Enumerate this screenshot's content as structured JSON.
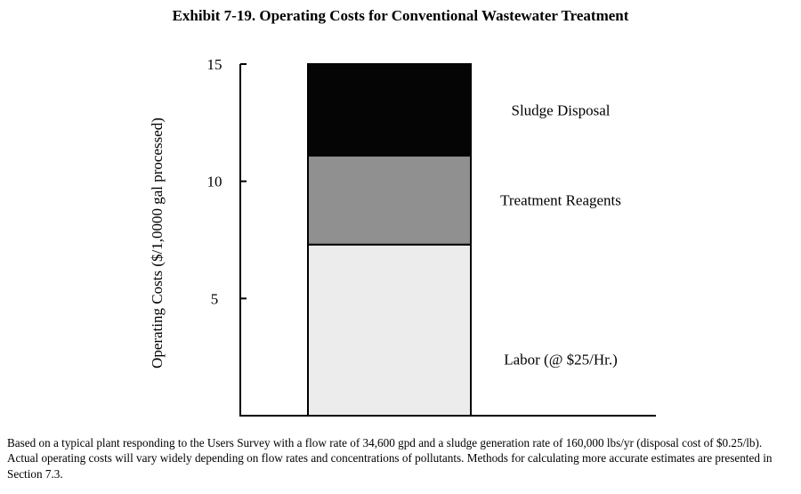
{
  "chart_data": {
    "type": "bar",
    "stacked": true,
    "title": "Exhibit 7-19. Operating Costs for Conventional Wastewater Treatment",
    "ylabel": "Operating Costs ($/1,0000 gal processed)",
    "xlabel": "",
    "ylim": [
      0,
      15
    ],
    "yticks": [
      5,
      10,
      15
    ],
    "categories": [
      ""
    ],
    "series": [
      {
        "name": "Labor (@ $25/Hr.)",
        "values": [
          7.3
        ],
        "color": "#ececec"
      },
      {
        "name": "Treatment Reagents",
        "values": [
          3.8
        ],
        "color": "#909090"
      },
      {
        "name": "Sludge Disposal",
        "values": [
          3.9
        ],
        "color": "#050505"
      }
    ],
    "legend": "right-of-bar labels",
    "grid": false
  },
  "caption": "Based on a typical plant responding to the Users Survey with a flow rate of 34,600 gpd and a sludge generation rate of 160,000 lbs/yr (disposal cost of $0.25/lb). Actual operating costs will vary widely depending on flow rates and concentrations of pollutants. Methods for calculating more accurate estimates are presented in Section 7.3."
}
